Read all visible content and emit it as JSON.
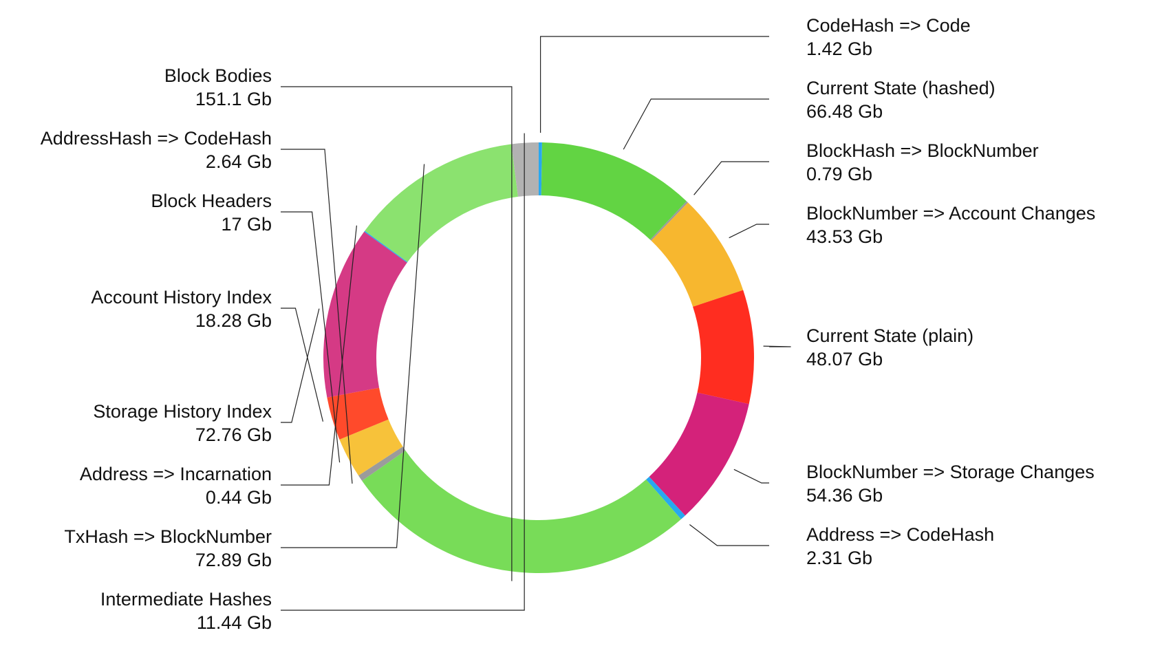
{
  "chart_data": {
    "type": "pie",
    "style": "donut",
    "unit": "Gb",
    "slices": [
      {
        "label": "CodeHash => Code",
        "value": 1.42,
        "value_label": "1.42 Gb",
        "color": "#27a8f0"
      },
      {
        "label": "Current State (hashed)",
        "value": 66.48,
        "value_label": "66.48 Gb",
        "color": "#62d443"
      },
      {
        "label": "BlockHash => BlockNumber",
        "value": 0.79,
        "value_label": "0.79 Gb",
        "color": "#9b9b9b"
      },
      {
        "label": "BlockNumber => Account Changes",
        "value": 43.53,
        "value_label": "43.53 Gb",
        "color": "#f7b72f"
      },
      {
        "label": "Current State (plain)",
        "value": 48.07,
        "value_label": "48.07 Gb",
        "color": "#ff2d20"
      },
      {
        "label": "BlockNumber => Storage Changes",
        "value": 54.36,
        "value_label": "54.36 Gb",
        "color": "#d4227a"
      },
      {
        "label": "Address => CodeHash",
        "value": 2.31,
        "value_label": "2.31 Gb",
        "color": "#27a8f0"
      },
      {
        "label": "Block Bodies",
        "value": 151.1,
        "value_label": "151.1 Gb",
        "color": "#78dc58"
      },
      {
        "label": "AddressHash => CodeHash",
        "value": 2.64,
        "value_label": "2.64 Gb",
        "color": "#9b9b9b"
      },
      {
        "label": "Block Headers",
        "value": 17,
        "value_label": "17 Gb",
        "color": "#f7c23a"
      },
      {
        "label": "Account History Index",
        "value": 18.28,
        "value_label": "18.28 Gb",
        "color": "#ff4a2b"
      },
      {
        "label": "Storage History Index",
        "value": 72.76,
        "value_label": "72.76 Gb",
        "color": "#d53a85"
      },
      {
        "label": "Address => Incarnation",
        "value": 0.44,
        "value_label": "0.44 Gb",
        "color": "#27a8f0"
      },
      {
        "label": "TxHash => BlockNumber",
        "value": 72.89,
        "value_label": "72.89 Gb",
        "color": "#8be26f"
      },
      {
        "label": "Intermediate Hashes",
        "value": 11.44,
        "value_label": "11.44 Gb",
        "color": "#b2b2b2"
      }
    ]
  }
}
